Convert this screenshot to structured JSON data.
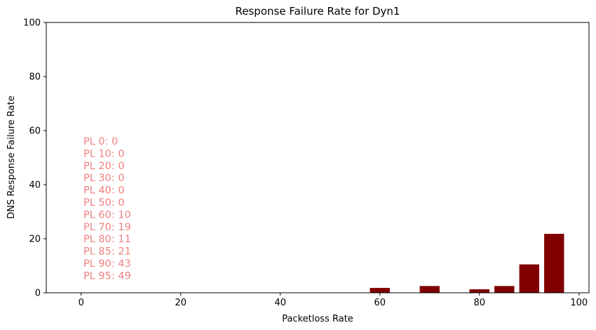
{
  "chart_data": {
    "type": "bar",
    "title": "Response Failure Rate for Dyn1",
    "xlabel": "Packetloss Rate",
    "ylabel": "DNS Response Failure Rate",
    "xlim": [
      -7,
      102
    ],
    "ylim": [
      0,
      100
    ],
    "xticks": [
      0,
      20,
      40,
      60,
      80,
      100
    ],
    "yticks": [
      0,
      20,
      40,
      60,
      80,
      100
    ],
    "bar_width": 4,
    "bar_color": "#800000",
    "annotation_color": "#f08080",
    "grid": false,
    "x": [
      0,
      10,
      20,
      30,
      40,
      50,
      60,
      70,
      80,
      85,
      90,
      95
    ],
    "values": [
      0,
      0,
      0,
      0,
      0,
      0,
      1.8,
      2.5,
      1.3,
      2.5,
      10.5,
      21.8
    ],
    "annotations": [
      "PL 0: 0",
      "PL 10: 0",
      "PL 20: 0",
      "PL 30: 0",
      "PL 40: 0",
      "PL 50: 0",
      "PL 60: 10",
      "PL 70: 19",
      "PL 80: 11",
      "PL 85: 21",
      "PL 90: 43",
      "PL 95: 49"
    ]
  }
}
